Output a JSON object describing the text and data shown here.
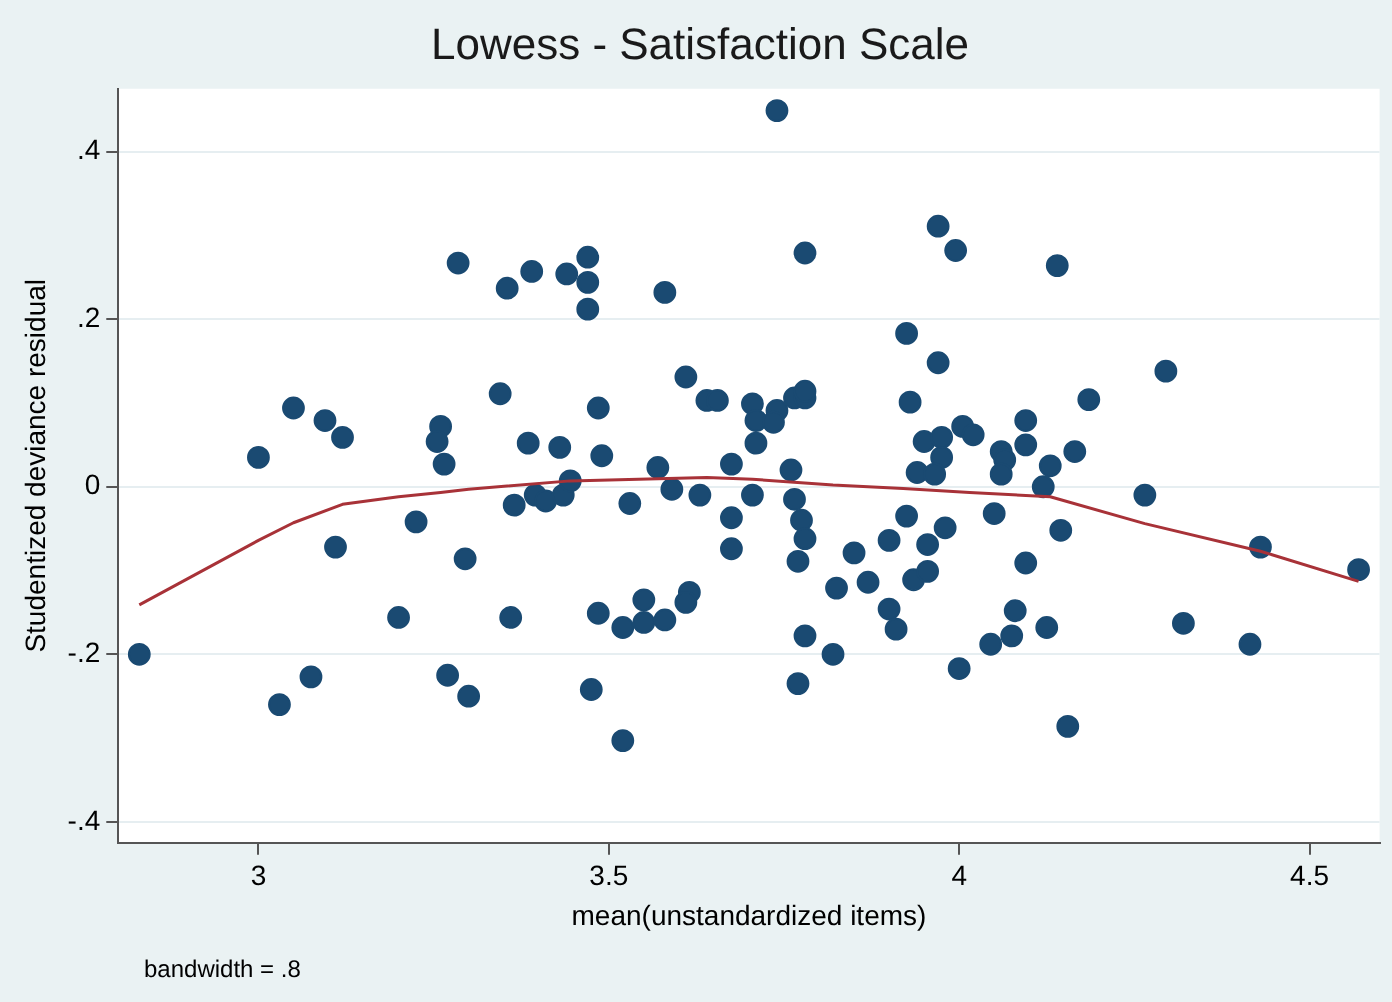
{
  "chart_data": {
    "type": "scatter",
    "title": "Lowess - Satisfaction Scale",
    "xlabel": "mean(unstandardized items)",
    "ylabel": "Studentized deviance residual",
    "annotations": [
      "bandwidth = .8"
    ],
    "xlim": [
      2.8,
      4.6
    ],
    "xticks": [
      3,
      3.5,
      4,
      4.5
    ],
    "ylim": [
      -0.425,
      0.475
    ],
    "yticks": [
      {
        "value": 0.4,
        "label": ".4"
      },
      {
        "value": 0.2,
        "label": ".2"
      },
      {
        "value": 0,
        "label": "0"
      },
      {
        "value": -0.2,
        "label": "-.2"
      },
      {
        "value": -0.4,
        "label": "-.4"
      }
    ],
    "grid": "y",
    "legend": false,
    "marker": "circle",
    "series": [
      {
        "color": "#1a4a72",
        "x": [
          2.83,
          3.0,
          3.05,
          3.095,
          3.12,
          3.11,
          3.03,
          3.075,
          3.2,
          3.225,
          3.26,
          3.255,
          3.265,
          3.285,
          3.295,
          3.27,
          3.3,
          3.345,
          3.355,
          3.39,
          3.36,
          3.365,
          3.385,
          3.395,
          3.41,
          3.43,
          3.435,
          3.445,
          3.44,
          3.47,
          3.47,
          3.47,
          3.485,
          3.49,
          3.53,
          3.485,
          3.475,
          3.52,
          3.52,
          3.55,
          3.55,
          3.58,
          3.58,
          3.57,
          3.59,
          3.61,
          3.615,
          3.61,
          3.63,
          3.64,
          3.655,
          3.675,
          3.675,
          3.675,
          3.705,
          3.71,
          3.71,
          3.705,
          3.74,
          3.74,
          3.735,
          3.765,
          3.78,
          3.78,
          3.76,
          3.765,
          3.775,
          3.78,
          3.77,
          3.78,
          3.78,
          3.77,
          3.82,
          3.825,
          3.85,
          3.87,
          3.9,
          3.9,
          3.91,
          3.925,
          3.955,
          3.935,
          3.955,
          3.98,
          3.925,
          3.93,
          3.97,
          3.97,
          3.995,
          3.95,
          3.975,
          3.975,
          3.94,
          3.965,
          4.005,
          4.0,
          4.02,
          4.06,
          4.065,
          4.06,
          4.095,
          4.095,
          4.13,
          4.12,
          4.165,
          4.185,
          4.14,
          4.05,
          4.145,
          4.095,
          4.08,
          4.075,
          4.045,
          4.125,
          4.155,
          4.295,
          4.265,
          4.32,
          4.415,
          4.43,
          4.57
        ],
        "values": [
          -0.2,
          0.035,
          0.094,
          0.079,
          0.059,
          -0.072,
          -0.26,
          -0.227,
          -0.156,
          -0.042,
          0.072,
          0.054,
          0.027,
          0.267,
          -0.086,
          -0.225,
          -0.25,
          0.111,
          0.237,
          0.257,
          -0.156,
          -0.022,
          0.052,
          -0.01,
          -0.017,
          0.047,
          -0.01,
          0.007,
          0.254,
          0.274,
          0.244,
          0.212,
          0.094,
          0.037,
          -0.02,
          -0.151,
          -0.242,
          -0.168,
          -0.303,
          -0.135,
          -0.162,
          -0.159,
          0.232,
          0.023,
          -0.003,
          0.131,
          -0.126,
          -0.138,
          -0.01,
          0.103,
          0.103,
          0.027,
          -0.037,
          -0.074,
          0.099,
          0.079,
          0.052,
          -0.01,
          0.449,
          0.091,
          0.077,
          0.106,
          0.106,
          0.114,
          0.02,
          -0.015,
          -0.04,
          -0.062,
          -0.089,
          0.279,
          -0.178,
          -0.235,
          -0.2,
          -0.121,
          -0.079,
          -0.114,
          -0.064,
          -0.146,
          -0.17,
          -0.035,
          -0.069,
          -0.111,
          -0.101,
          -0.049,
          0.183,
          0.101,
          0.148,
          0.311,
          0.282,
          0.054,
          0.059,
          0.035,
          0.017,
          0.015,
          0.072,
          -0.217,
          0.062,
          0.042,
          0.032,
          0.015,
          0.079,
          0.05,
          0.025,
          0.0,
          0.042,
          0.104,
          0.264,
          -0.032,
          -0.052,
          -0.091,
          -0.148,
          -0.178,
          -0.188,
          -0.168,
          -0.286,
          0.138,
          -0.01,
          -0.163,
          -0.188,
          -0.072,
          -0.099
        ]
      },
      {
        "type": "line",
        "color": "#a83238",
        "marker": "none",
        "x": [
          2.83,
          3.0,
          3.05,
          3.12,
          3.2,
          3.26,
          3.3,
          3.445,
          3.64,
          3.705,
          3.82,
          3.92,
          4.015,
          4.13,
          4.265,
          4.43,
          4.57
        ],
        "values": [
          -0.141,
          -0.064,
          -0.043,
          -0.021,
          -0.012,
          -0.007,
          -0.003,
          0.007,
          0.011,
          0.009,
          0.002,
          -0.002,
          -0.007,
          -0.012,
          -0.044,
          -0.077,
          -0.113
        ]
      }
    ]
  }
}
